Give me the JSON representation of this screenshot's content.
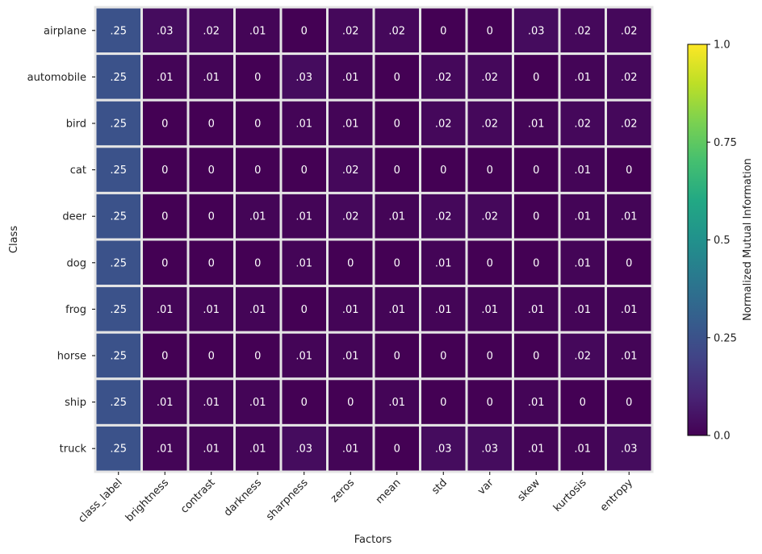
{
  "chart_data": {
    "type": "heatmap",
    "title": "",
    "xlabel": "Factors",
    "ylabel": "Class",
    "columns": [
      "class_label",
      "brightness",
      "contrast",
      "darkness",
      "sharpness",
      "zeros",
      "mean",
      "std",
      "var",
      "skew",
      "kurtosis",
      "entropy"
    ],
    "rows": [
      "airplane",
      "automobile",
      "bird",
      "cat",
      "deer",
      "dog",
      "frog",
      "horse",
      "ship",
      "truck"
    ],
    "values": [
      [
        0.25,
        0.03,
        0.02,
        0.01,
        0,
        0.02,
        0.02,
        0,
        0,
        0.03,
        0.02,
        0.02
      ],
      [
        0.25,
        0.01,
        0.01,
        0,
        0.03,
        0.01,
        0,
        0.02,
        0.02,
        0,
        0.01,
        0.02
      ],
      [
        0.25,
        0,
        0,
        0,
        0.01,
        0.01,
        0,
        0.02,
        0.02,
        0.01,
        0.02,
        0.02
      ],
      [
        0.25,
        0,
        0,
        0,
        0,
        0.02,
        0,
        0,
        0,
        0,
        0.01,
        0
      ],
      [
        0.25,
        0,
        0,
        0.01,
        0.01,
        0.02,
        0.01,
        0.02,
        0.02,
        0,
        0.01,
        0.01
      ],
      [
        0.25,
        0,
        0,
        0,
        0.01,
        0,
        0,
        0.01,
        0,
        0,
        0.01,
        0
      ],
      [
        0.25,
        0.01,
        0.01,
        0.01,
        0,
        0.01,
        0.01,
        0.01,
        0.01,
        0.01,
        0.01,
        0.01
      ],
      [
        0.25,
        0,
        0,
        0,
        0.01,
        0.01,
        0,
        0,
        0,
        0,
        0.02,
        0.01
      ],
      [
        0.25,
        0.01,
        0.01,
        0.01,
        0,
        0,
        0.01,
        0,
        0,
        0.01,
        0,
        0
      ],
      [
        0.25,
        0.01,
        0.01,
        0.01,
        0.03,
        0.01,
        0,
        0.03,
        0.03,
        0.01,
        0.01,
        0.03
      ]
    ],
    "cell_labels": [
      [
        ".25",
        ".03",
        ".02",
        ".01",
        "0",
        ".02",
        ".02",
        "0",
        "0",
        ".03",
        ".02",
        ".02"
      ],
      [
        ".25",
        ".01",
        ".01",
        "0",
        ".03",
        ".01",
        "0",
        ".02",
        ".02",
        "0",
        ".01",
        ".02"
      ],
      [
        ".25",
        "0",
        "0",
        "0",
        ".01",
        ".01",
        "0",
        ".02",
        ".02",
        ".01",
        ".02",
        ".02"
      ],
      [
        ".25",
        "0",
        "0",
        "0",
        "0",
        ".02",
        "0",
        "0",
        "0",
        "0",
        ".01",
        "0"
      ],
      [
        ".25",
        "0",
        "0",
        ".01",
        ".01",
        ".02",
        ".01",
        ".02",
        ".02",
        "0",
        ".01",
        ".01"
      ],
      [
        ".25",
        "0",
        "0",
        "0",
        ".01",
        "0",
        "0",
        ".01",
        "0",
        "0",
        ".01",
        "0"
      ],
      [
        ".25",
        ".01",
        ".01",
        ".01",
        "0",
        ".01",
        ".01",
        ".01",
        ".01",
        ".01",
        ".01",
        ".01"
      ],
      [
        ".25",
        "0",
        "0",
        "0",
        ".01",
        ".01",
        "0",
        "0",
        "0",
        "0",
        ".02",
        ".01"
      ],
      [
        ".25",
        ".01",
        ".01",
        ".01",
        "0",
        "0",
        ".01",
        "0",
        "0",
        ".01",
        "0",
        "0"
      ],
      [
        ".25",
        ".01",
        ".01",
        ".01",
        ".03",
        ".01",
        "0",
        ".03",
        ".03",
        ".01",
        ".01",
        ".03"
      ]
    ],
    "colormap": "viridis",
    "value_range": [
      0,
      1
    ],
    "colorbar": {
      "label": "Normalized Mutual Information",
      "ticks": [
        0,
        0.25,
        0.5,
        0.75,
        1
      ],
      "tick_labels": [
        "0.0",
        "0.25",
        "0.5",
        "0.75",
        "1.0"
      ]
    },
    "grid": false,
    "cell_border_color": "#e5e5e5"
  }
}
